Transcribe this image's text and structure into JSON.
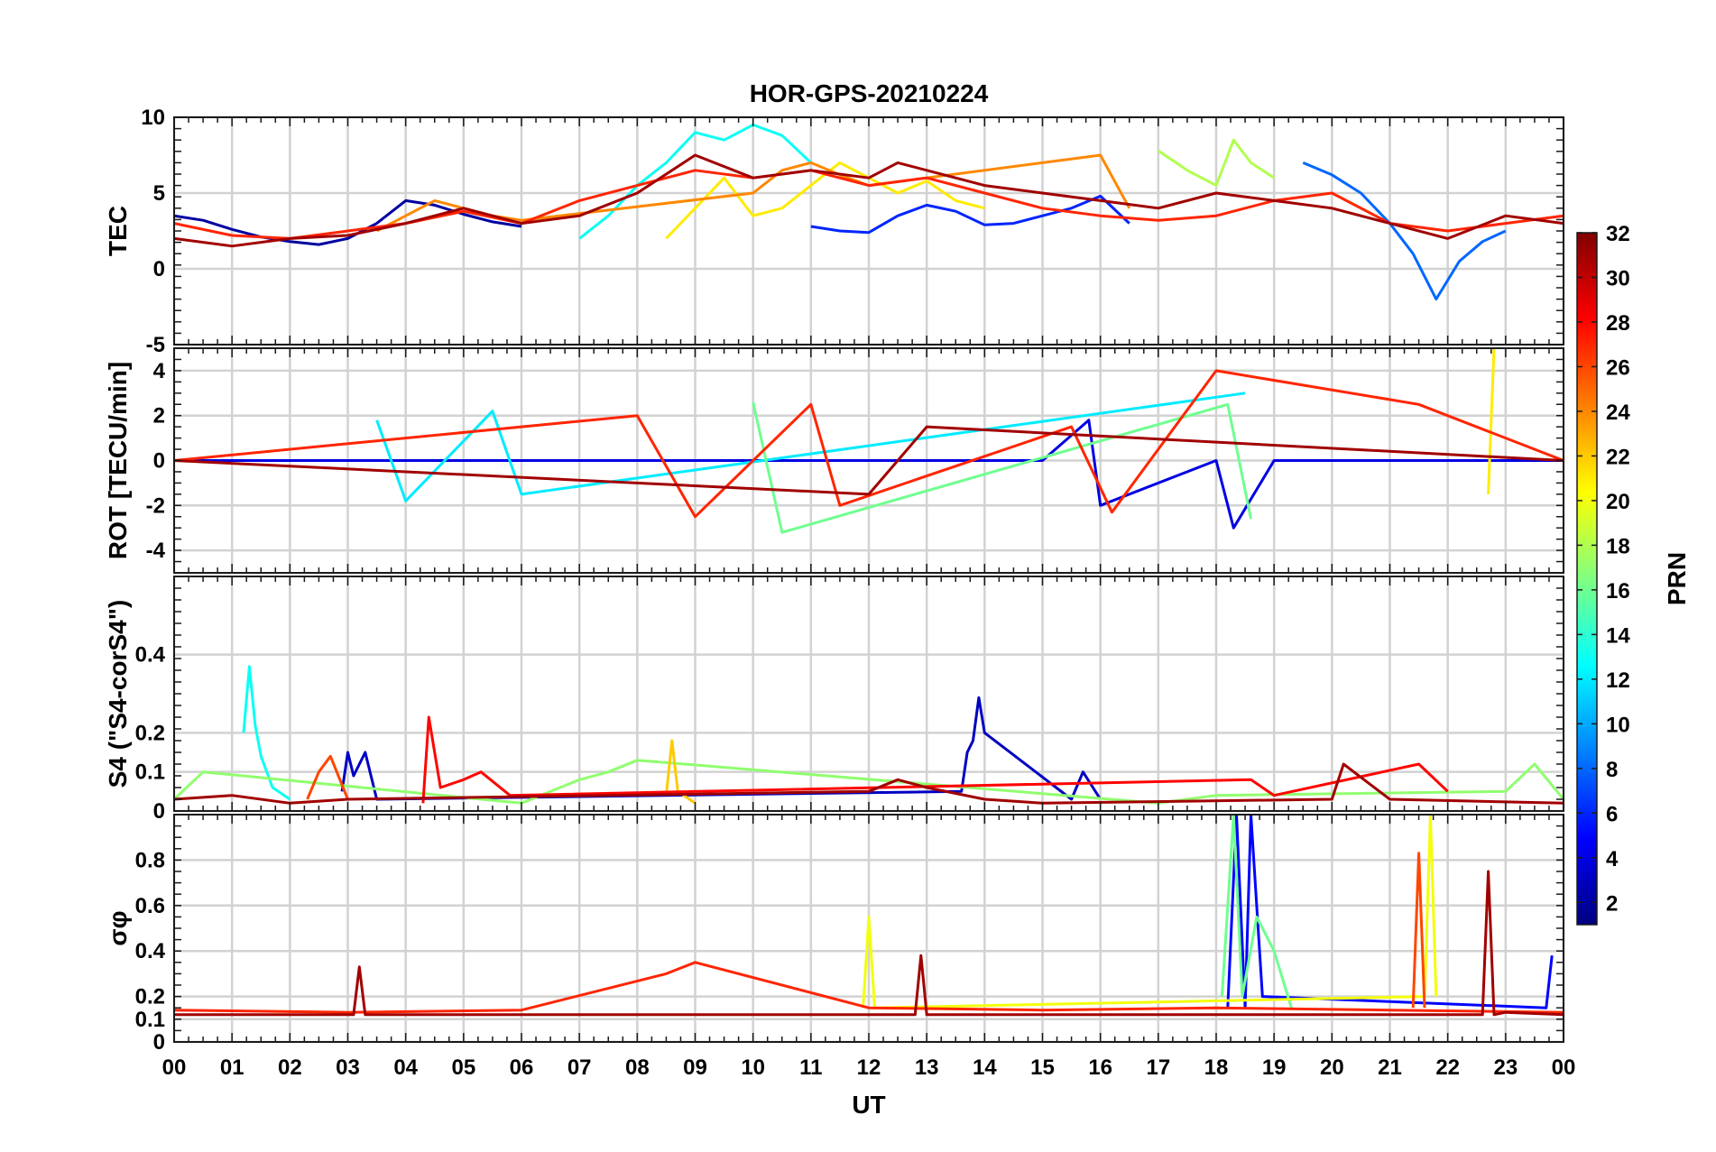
{
  "chart_data": {
    "type": "line",
    "title": "HOR-GPS-20210224",
    "xlabel": "UT",
    "x_tick_labels": [
      "00",
      "01",
      "02",
      "03",
      "04",
      "05",
      "06",
      "07",
      "08",
      "09",
      "10",
      "11",
      "12",
      "13",
      "14",
      "15",
      "16",
      "17",
      "18",
      "19",
      "20",
      "21",
      "22",
      "23",
      "00"
    ],
    "xlim": [
      0,
      24
    ],
    "colorbar": {
      "label": "PRN",
      "range": [
        1,
        32
      ],
      "tick_labels": [
        "2",
        "4",
        "6",
        "8",
        "10",
        "12",
        "14",
        "16",
        "18",
        "20",
        "22",
        "24",
        "26",
        "28",
        "30",
        "32"
      ],
      "colormap": "jet",
      "colors": [
        "#000080",
        "#0000ff",
        "#0080ff",
        "#00ffff",
        "#80ff80",
        "#ffff00",
        "#ff8000",
        "#ff0000",
        "#800000"
      ]
    },
    "panels": [
      {
        "name": "tec",
        "ylabel": "TEC",
        "ylim": [
          -5,
          10
        ],
        "y_ticks": [
          -5,
          0,
          5,
          10
        ],
        "y_tick_labels": [
          "-5",
          "0",
          "5",
          "10"
        ],
        "series": [
          {
            "prn": 2,
            "x": [
              0.0,
              0.5,
              1.0,
              1.5,
              2.0,
              2.5,
              3.0,
              3.5,
              4.0,
              4.5,
              5.0,
              5.5,
              6.0
            ],
            "values": [
              3.5,
              3.2,
              2.6,
              2.1,
              1.8,
              1.6,
              2.0,
              3.0,
              4.5,
              4.2,
              3.6,
              3.1,
              2.8
            ]
          },
          {
            "prn": 6,
            "x": [
              11.0,
              11.5,
              12.0,
              12.5,
              13.0,
              13.5,
              14.0,
              14.5,
              15.0,
              15.5,
              16.0,
              16.5
            ],
            "values": [
              2.8,
              2.5,
              2.4,
              3.5,
              4.2,
              3.8,
              2.9,
              3.0,
              3.5,
              4.0,
              4.8,
              3.0
            ]
          },
          {
            "prn": 8,
            "x": [
              19.5,
              20.0,
              20.5,
              21.0,
              21.4,
              21.8,
              22.2,
              22.6,
              23.0
            ],
            "values": [
              7.0,
              6.2,
              5.0,
              3.0,
              1.0,
              -2.0,
              0.5,
              1.8,
              2.5
            ]
          },
          {
            "prn": 13,
            "x": [
              7.0,
              7.5,
              8.0,
              8.5,
              9.0,
              9.5,
              10.0,
              10.5,
              11.0
            ],
            "values": [
              2.0,
              3.5,
              5.5,
              7.0,
              9.0,
              8.5,
              9.5,
              8.8,
              7.0
            ]
          },
          {
            "prn": 18,
            "x": [
              17.0,
              17.5,
              18.0,
              18.3,
              18.6,
              19.0
            ],
            "values": [
              7.8,
              6.5,
              5.5,
              8.5,
              7.0,
              6.0
            ]
          },
          {
            "prn": 21,
            "x": [
              8.5,
              9.0,
              9.5,
              10.0,
              10.5,
              11.0,
              11.5,
              12.0,
              12.5,
              13.0,
              13.5,
              14.0
            ],
            "values": [
              2.0,
              4.0,
              6.0,
              3.5,
              4.0,
              5.5,
              7.0,
              6.0,
              5.0,
              5.8,
              4.5,
              4.0
            ]
          },
          {
            "prn": 24,
            "x": [
              3.5,
              4.0,
              4.5,
              5.0,
              5.5,
              6.0,
              10.0,
              10.5,
              11.0,
              11.5,
              12.0,
              16.0,
              16.5
            ],
            "values": [
              2.5,
              3.5,
              4.5,
              4.0,
              3.5,
              3.2,
              5.0,
              6.5,
              7.0,
              6.2,
              5.5,
              7.5,
              4.0
            ]
          },
          {
            "prn": 27,
            "x": [
              0.0,
              1.0,
              2.0,
              3.0,
              4.0,
              5.0,
              6.0,
              7.0,
              8.0,
              9.0,
              10.0,
              11.0,
              12.0,
              13.0,
              14.0,
              15.0,
              16.0,
              17.0,
              18.0,
              19.0,
              20.0,
              21.0,
              22.0,
              23.0,
              24.0
            ],
            "values": [
              3.0,
              2.2,
              2.0,
              2.5,
              3.0,
              3.8,
              3.0,
              4.5,
              5.5,
              6.5,
              6.0,
              6.5,
              5.5,
              6.0,
              5.0,
              4.0,
              3.5,
              3.2,
              3.5,
              4.5,
              5.0,
              3.0,
              2.5,
              3.0,
              3.5
            ]
          },
          {
            "prn": 31,
            "x": [
              0.0,
              1.0,
              2.0,
              3.0,
              4.0,
              5.0,
              6.0,
              7.0,
              8.0,
              9.0,
              10.0,
              11.0,
              12.0,
              12.5,
              13.0,
              13.5,
              14.0,
              15.0,
              16.0,
              17.0,
              18.0,
              19.0,
              20.0,
              21.0,
              22.0,
              23.0,
              24.0
            ],
            "values": [
              2.0,
              1.5,
              2.0,
              2.2,
              3.0,
              4.0,
              3.0,
              3.5,
              5.0,
              7.5,
              6.0,
              6.5,
              6.0,
              7.0,
              6.5,
              6.0,
              5.5,
              5.0,
              4.5,
              4.0,
              5.0,
              4.5,
              4.0,
              3.0,
              2.0,
              3.5,
              3.0
            ]
          }
        ]
      },
      {
        "name": "rot",
        "ylabel": "ROT [TECU/min]",
        "ylim": [
          -5,
          5
        ],
        "y_ticks": [
          -4,
          -2,
          0,
          2,
          4
        ],
        "y_tick_labels": [
          "-4",
          "-2",
          "0",
          "2",
          "4"
        ],
        "series": [
          {
            "prn": 4,
            "x": [
              0.0,
              3.0,
              4.0,
              6.0,
              9.0,
              12.0,
              15.0,
              15.8,
              16.0,
              18.0,
              18.3,
              19.0,
              22.0,
              24.0
            ],
            "values": [
              0,
              0,
              0,
              0,
              0,
              0,
              0,
              1.8,
              -2.0,
              0,
              -3.0,
              0,
              0,
              0
            ]
          },
          {
            "prn": 12,
            "x": [
              3.5,
              4.0,
              5.5,
              6.0,
              18.5
            ],
            "values": [
              1.8,
              -1.8,
              2.2,
              -1.5,
              3.0
            ]
          },
          {
            "prn": 16,
            "x": [
              10.0,
              10.5,
              18.2,
              18.6
            ],
            "values": [
              2.6,
              -3.2,
              2.5,
              -2.6
            ]
          },
          {
            "prn": 21,
            "x": [
              22.7,
              22.8
            ],
            "values": [
              -1.5,
              5.0
            ]
          },
          {
            "prn": 27,
            "x": [
              0.0,
              8.0,
              9.0,
              11.0,
              11.5,
              15.5,
              16.2,
              18.0,
              21.5,
              24.0
            ],
            "values": [
              0,
              2.0,
              -2.5,
              2.5,
              -2.0,
              1.5,
              -2.3,
              4.0,
              2.5,
              0
            ]
          },
          {
            "prn": 31,
            "x": [
              0.0,
              12.0,
              13.0,
              24.0
            ],
            "values": [
              0,
              -1.5,
              1.5,
              0
            ]
          }
        ]
      },
      {
        "name": "s4",
        "ylabel": "S4 (\"S4-corS4\")",
        "ylim": [
          0,
          0.6
        ],
        "y_ticks": [
          0,
          0.1,
          0.2,
          0.4
        ],
        "y_tick_labels": [
          "0",
          "0.1",
          "0.2",
          "0.4"
        ],
        "series": [
          {
            "prn": 3,
            "x": [
              2.9,
              3.0,
              3.1,
              3.3,
              3.5,
              13.6,
              13.7,
              13.8,
              13.9,
              14.0,
              15.5,
              15.7,
              16.0
            ],
            "values": [
              0.05,
              0.15,
              0.09,
              0.15,
              0.03,
              0.05,
              0.15,
              0.18,
              0.29,
              0.2,
              0.03,
              0.1,
              0.03
            ]
          },
          {
            "prn": 13,
            "x": [
              1.2,
              1.3,
              1.4,
              1.5,
              1.7,
              2.0
            ],
            "values": [
              0.2,
              0.37,
              0.22,
              0.14,
              0.06,
              0.03
            ]
          },
          {
            "prn": 17,
            "x": [
              0.0,
              0.5,
              6.0,
              7.0,
              7.5,
              8.0,
              17.0,
              18.0,
              23.0,
              23.5,
              24.0
            ],
            "values": [
              0.03,
              0.1,
              0.02,
              0.08,
              0.1,
              0.13,
              0.02,
              0.04,
              0.05,
              0.12,
              0.03
            ]
          },
          {
            "prn": 22,
            "x": [
              8.5,
              8.6,
              8.7,
              9.0
            ],
            "values": [
              0.04,
              0.18,
              0.05,
              0.02
            ]
          },
          {
            "prn": 26,
            "x": [
              2.3,
              2.5,
              2.7,
              3.0
            ],
            "values": [
              0.03,
              0.1,
              0.14,
              0.03
            ]
          },
          {
            "prn": 28,
            "x": [
              4.3,
              4.4,
              4.6,
              5.0,
              5.3,
              5.8,
              18.6,
              19.0,
              21.5,
              22.0
            ],
            "values": [
              0.02,
              0.24,
              0.06,
              0.08,
              0.1,
              0.04,
              0.08,
              0.04,
              0.12,
              0.05
            ]
          },
          {
            "prn": 31,
            "x": [
              0.0,
              1.0,
              2.0,
              3.0,
              12.0,
              12.5,
              13.0,
              14.0,
              15.0,
              20.0,
              20.2,
              21.0,
              24.0
            ],
            "values": [
              0.03,
              0.04,
              0.02,
              0.03,
              0.05,
              0.08,
              0.06,
              0.03,
              0.02,
              0.03,
              0.12,
              0.03,
              0.02
            ]
          }
        ]
      },
      {
        "name": "sigma-phi",
        "ylabel": "σφ",
        "ylim": [
          0,
          1.0
        ],
        "y_ticks": [
          0,
          0.1,
          0.2,
          0.4,
          0.6,
          0.8
        ],
        "y_tick_labels": [
          "0",
          "0.1",
          "0.2",
          "0.4",
          "0.6",
          "0.8"
        ],
        "series": [
          {
            "prn": 5,
            "x": [
              18.2,
              18.35,
              18.5,
              18.6,
              18.8,
              23.7,
              23.8
            ],
            "values": [
              0.15,
              1.0,
              0.15,
              1.0,
              0.2,
              0.15,
              0.38
            ]
          },
          {
            "prn": 16,
            "x": [
              18.1,
              18.3,
              18.45,
              18.7,
              19.0,
              19.3
            ],
            "values": [
              0.2,
              1.0,
              0.2,
              0.55,
              0.4,
              0.15
            ]
          },
          {
            "prn": 20,
            "x": [
              11.9,
              12.0,
              12.1,
              21.6,
              21.7,
              21.8
            ],
            "values": [
              0.15,
              0.55,
              0.15,
              0.2,
              1.0,
              0.2
            ]
          },
          {
            "prn": 26,
            "x": [
              21.4,
              21.5,
              21.6
            ],
            "values": [
              0.15,
              0.83,
              0.15
            ]
          },
          {
            "prn": 27,
            "x": [
              0.0,
              3.0,
              6.0,
              8.5,
              9.0,
              12.0,
              15.0,
              18.0,
              21.0,
              24.0
            ],
            "values": [
              0.14,
              0.13,
              0.14,
              0.3,
              0.35,
              0.15,
              0.14,
              0.15,
              0.14,
              0.13
            ]
          },
          {
            "prn": 31,
            "x": [
              0.0,
              3.1,
              3.2,
              3.3,
              12.8,
              12.9,
              13.0,
              22.6,
              22.7,
              22.8,
              23.0,
              24.0
            ],
            "values": [
              0.12,
              0.12,
              0.33,
              0.12,
              0.12,
              0.38,
              0.12,
              0.12,
              0.75,
              0.12,
              0.13,
              0.12
            ]
          }
        ]
      }
    ]
  }
}
